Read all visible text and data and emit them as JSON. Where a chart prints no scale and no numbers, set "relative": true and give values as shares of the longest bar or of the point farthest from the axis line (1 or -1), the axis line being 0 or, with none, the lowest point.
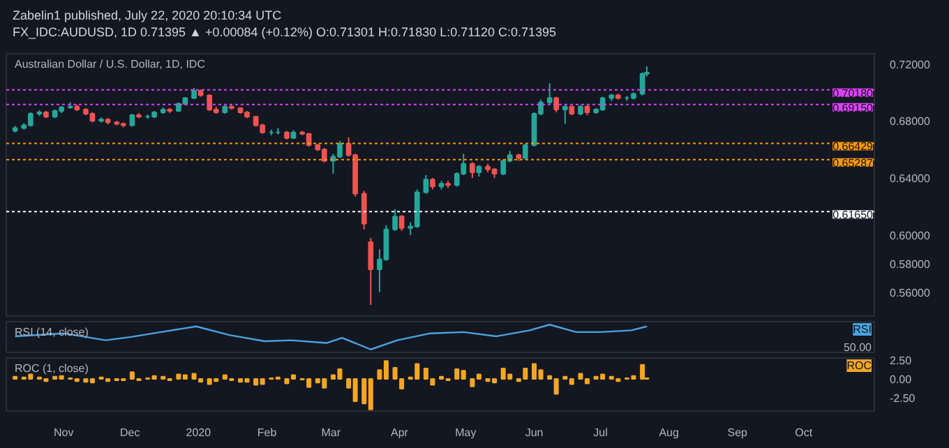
{
  "chart_data": [
    {
      "type": "candlestick",
      "title": "Australian Dollar / U.S. Dollar, 1D, IDC",
      "annotations": [
        "Zabelin1 published, July 22, 2020 20:10:34 UTC",
        "FX_IDC:AUDUSD, 1D 0.71395 ▲ +0.00084 (+0.12%) O:0.71301 H:0.71830 L:0.71120 C:0.71395"
      ],
      "x": [
        "2019-10-10",
        "2019-10-14",
        "2019-10-17",
        "2019-10-21",
        "2019-10-24",
        "2019-10-28",
        "2019-10-31",
        "2019-11-04",
        "2019-11-07",
        "2019-11-11",
        "2019-11-14",
        "2019-11-18",
        "2019-11-21",
        "2019-11-25",
        "2019-11-28",
        "2019-12-02",
        "2019-12-05",
        "2019-12-09",
        "2019-12-12",
        "2019-12-16",
        "2019-12-19",
        "2019-12-23",
        "2019-12-26",
        "2019-12-30",
        "2020-01-02",
        "2020-01-06",
        "2020-01-09",
        "2020-01-13",
        "2020-01-16",
        "2020-01-20",
        "2020-01-23",
        "2020-01-27",
        "2020-01-30",
        "2020-02-03",
        "2020-02-06",
        "2020-02-10",
        "2020-02-13",
        "2020-02-17",
        "2020-02-20",
        "2020-02-24",
        "2020-02-27",
        "2020-03-02",
        "2020-03-05",
        "2020-03-09",
        "2020-03-12",
        "2020-03-16",
        "2020-03-19",
        "2020-03-23",
        "2020-03-26",
        "2020-03-30",
        "2020-04-02",
        "2020-04-06",
        "2020-04-09",
        "2020-04-13",
        "2020-04-16",
        "2020-04-20",
        "2020-04-23",
        "2020-04-27",
        "2020-04-30",
        "2020-05-04",
        "2020-05-07",
        "2020-05-11",
        "2020-05-14",
        "2020-05-18",
        "2020-05-21",
        "2020-05-25",
        "2020-05-28",
        "2020-06-01",
        "2020-06-04",
        "2020-06-08",
        "2020-06-11",
        "2020-06-15",
        "2020-06-18",
        "2020-06-22",
        "2020-06-25",
        "2020-06-29",
        "2020-07-02",
        "2020-07-06",
        "2020-07-09",
        "2020-07-13",
        "2020-07-16",
        "2020-07-20",
        "2020-07-22"
      ],
      "ohlc": [
        [
          0.673,
          0.6765,
          0.672,
          0.675
        ],
        [
          0.675,
          0.6785,
          0.674,
          0.677
        ],
        [
          0.677,
          0.686,
          0.676,
          0.685
        ],
        [
          0.685,
          0.6875,
          0.6835,
          0.686
        ],
        [
          0.686,
          0.687,
          0.682,
          0.683
        ],
        [
          0.683,
          0.688,
          0.682,
          0.687
        ],
        [
          0.687,
          0.6905,
          0.6855,
          0.6895
        ],
        [
          0.6895,
          0.693,
          0.6885,
          0.69
        ],
        [
          0.69,
          0.6915,
          0.687,
          0.688
        ],
        [
          0.688,
          0.689,
          0.684,
          0.685
        ],
        [
          0.685,
          0.686,
          0.679,
          0.68
        ],
        [
          0.68,
          0.6825,
          0.679,
          0.681
        ],
        [
          0.681,
          0.682,
          0.6775,
          0.679
        ],
        [
          0.679,
          0.68,
          0.677,
          0.678
        ],
        [
          0.678,
          0.679,
          0.6755,
          0.677
        ],
        [
          0.677,
          0.685,
          0.676,
          0.684
        ],
        [
          0.684,
          0.6855,
          0.682,
          0.683
        ],
        [
          0.683,
          0.6845,
          0.6815,
          0.683
        ],
        [
          0.683,
          0.687,
          0.682,
          0.686
        ],
        [
          0.686,
          0.6895,
          0.685,
          0.688
        ],
        [
          0.688,
          0.689,
          0.6855,
          0.687
        ],
        [
          0.687,
          0.693,
          0.6865,
          0.692
        ],
        [
          0.692,
          0.6965,
          0.691,
          0.696
        ],
        [
          0.696,
          0.7032,
          0.6955,
          0.701
        ],
        [
          0.701,
          0.702,
          0.697,
          0.698
        ],
        [
          0.698,
          0.6985,
          0.687,
          0.688
        ],
        [
          0.688,
          0.69,
          0.685,
          0.686
        ],
        [
          0.686,
          0.691,
          0.685,
          0.69
        ],
        [
          0.69,
          0.6915,
          0.688,
          0.689
        ],
        [
          0.689,
          0.6895,
          0.685,
          0.686
        ],
        [
          0.686,
          0.687,
          0.682,
          0.683
        ],
        [
          0.683,
          0.6835,
          0.676,
          0.677
        ],
        [
          0.677,
          0.678,
          0.671,
          0.672
        ],
        [
          0.672,
          0.674,
          0.67,
          0.672
        ],
        [
          0.672,
          0.675,
          0.6705,
          0.672
        ],
        [
          0.672,
          0.673,
          0.667,
          0.668
        ],
        [
          0.668,
          0.6735,
          0.6675,
          0.672
        ],
        [
          0.672,
          0.673,
          0.67,
          0.671
        ],
        [
          0.671,
          0.6715,
          0.662,
          0.663
        ],
        [
          0.663,
          0.664,
          0.659,
          0.66
        ],
        [
          0.66,
          0.661,
          0.651,
          0.652
        ],
        [
          0.652,
          0.657,
          0.643,
          0.655
        ],
        [
          0.655,
          0.666,
          0.654,
          0.664
        ],
        [
          0.664,
          0.6685,
          0.655,
          0.656
        ],
        [
          0.656,
          0.657,
          0.627,
          0.629
        ],
        [
          0.629,
          0.631,
          0.604,
          0.608
        ],
        [
          0.595,
          0.598,
          0.551,
          0.576
        ],
        [
          0.576,
          0.59,
          0.56,
          0.583
        ],
        [
          0.583,
          0.607,
          0.582,
          0.604
        ],
        [
          0.604,
          0.618,
          0.603,
          0.613
        ],
        [
          0.613,
          0.614,
          0.603,
          0.605
        ],
        [
          0.605,
          0.609,
          0.6,
          0.606
        ],
        [
          0.606,
          0.632,
          0.605,
          0.63
        ],
        [
          0.63,
          0.642,
          0.629,
          0.639
        ],
        [
          0.639,
          0.64,
          0.632,
          0.634
        ],
        [
          0.634,
          0.638,
          0.632,
          0.636
        ],
        [
          0.636,
          0.638,
          0.633,
          0.635
        ],
        [
          0.635,
          0.644,
          0.634,
          0.643
        ],
        [
          0.643,
          0.657,
          0.642,
          0.65
        ],
        [
          0.65,
          0.651,
          0.64,
          0.644
        ],
        [
          0.644,
          0.649,
          0.641,
          0.648
        ],
        [
          0.648,
          0.65,
          0.644,
          0.646
        ],
        [
          0.646,
          0.647,
          0.64,
          0.643
        ],
        [
          0.643,
          0.653,
          0.642,
          0.652
        ],
        [
          0.652,
          0.659,
          0.651,
          0.656
        ],
        [
          0.656,
          0.657,
          0.652,
          0.654
        ],
        [
          0.654,
          0.664,
          0.653,
          0.663
        ],
        [
          0.663,
          0.686,
          0.662,
          0.685
        ],
        [
          0.685,
          0.695,
          0.684,
          0.693
        ],
        [
          0.693,
          0.7064,
          0.692,
          0.696
        ],
        [
          0.696,
          0.697,
          0.686,
          0.688
        ],
        [
          0.688,
          0.691,
          0.678,
          0.69
        ],
        [
          0.69,
          0.6905,
          0.684,
          0.685
        ],
        [
          0.685,
          0.691,
          0.684,
          0.69
        ],
        [
          0.69,
          0.691,
          0.684,
          0.686
        ],
        [
          0.686,
          0.689,
          0.685,
          0.688
        ],
        [
          0.688,
          0.697,
          0.687,
          0.696
        ],
        [
          0.696,
          0.699,
          0.694,
          0.698
        ],
        [
          0.698,
          0.699,
          0.695,
          0.696
        ],
        [
          0.696,
          0.6975,
          0.694,
          0.696
        ],
        [
          0.696,
          0.7,
          0.695,
          0.699
        ],
        [
          0.699,
          0.714,
          0.698,
          0.713
        ],
        [
          0.71301,
          0.7183,
          0.7112,
          0.71395
        ]
      ],
      "colors": [
        "#26a69a",
        "#26a69a",
        "#26a69a",
        "#26a69a",
        "#ef5350",
        "#26a69a",
        "#26a69a",
        "#26a69a",
        "#ef5350",
        "#ef5350",
        "#ef5350",
        "#26a69a",
        "#ef5350",
        "#ef5350",
        "#ef5350",
        "#26a69a",
        "#ef5350",
        "#26a69a",
        "#26a69a",
        "#26a69a",
        "#ef5350",
        "#26a69a",
        "#26a69a",
        "#26a69a",
        "#ef5350",
        "#ef5350",
        "#ef5350",
        "#26a69a",
        "#ef5350",
        "#ef5350",
        "#ef5350",
        "#ef5350",
        "#ef5350",
        "#26a69a",
        "#26a69a",
        "#ef5350",
        "#26a69a",
        "#ef5350",
        "#ef5350",
        "#ef5350",
        "#ef5350",
        "#26a69a",
        "#26a69a",
        "#ef5350",
        "#ef5350",
        "#ef5350",
        "#ef5350",
        "#26a69a",
        "#26a69a",
        "#26a69a",
        "#ef5350",
        "#26a69a",
        "#26a69a",
        "#26a69a",
        "#ef5350",
        "#26a69a",
        "#ef5350",
        "#26a69a",
        "#26a69a",
        "#ef5350",
        "#26a69a",
        "#ef5350",
        "#ef5350",
        "#26a69a",
        "#26a69a",
        "#ef5350",
        "#26a69a",
        "#26a69a",
        "#26a69a",
        "#26a69a",
        "#ef5350",
        "#26a69a",
        "#ef5350",
        "#26a69a",
        "#ef5350",
        "#26a69a",
        "#26a69a",
        "#26a69a",
        "#ef5350",
        "#26a69a",
        "#26a69a",
        "#26a69a",
        "#26a69a"
      ],
      "xlim": [
        "2019-10-06",
        "2020-11-02"
      ],
      "ylim": [
        0.5432,
        0.7271
      ],
      "yticks": [
        {
          "value": 0.72,
          "label": "0.72000"
        },
        {
          "value": 0.68,
          "label": "0.68000"
        },
        {
          "value": 0.64,
          "label": "0.64000"
        },
        {
          "value": 0.6,
          "label": "0.60000"
        },
        {
          "value": 0.58,
          "label": "0.58000"
        },
        {
          "value": 0.56,
          "label": "0.56000"
        }
      ],
      "ref_lines": [
        {
          "axis": "y",
          "value": 0.7018,
          "label": "0.70180",
          "color": "#e040fb",
          "line_style": "dotted"
        },
        {
          "axis": "y",
          "value": 0.6915,
          "label": "0.69150",
          "color": "#e040fb",
          "line_style": "dotted"
        },
        {
          "axis": "y",
          "value": 0.66429,
          "label": "0.66429",
          "color": "#ff9800",
          "line_style": "dotted"
        },
        {
          "axis": "y",
          "value": 0.65287,
          "label": "0.65287",
          "color": "#ff9800",
          "line_style": "dotted"
        },
        {
          "axis": "y",
          "value": 0.6165,
          "label": "0.61650",
          "color": "#ffffff",
          "line_style": "dotted"
        }
      ],
      "grid": false,
      "tick_labels": "y"
    },
    {
      "type": "line",
      "title": "RSI (14, close)",
      "relative": true,
      "annotations": [
        "RSI",
        "50.00"
      ],
      "x": [
        "2019-10-10",
        "2019-11-01",
        "2019-11-20",
        "2019-12-02",
        "2019-12-15",
        "2019-12-31",
        "2020-01-15",
        "2020-01-31",
        "2020-02-12",
        "2020-02-28",
        "2020-03-06",
        "2020-03-19",
        "2020-03-31",
        "2020-04-15",
        "2020-04-30",
        "2020-05-15",
        "2020-05-30",
        "2020-06-08",
        "2020-06-20",
        "2020-07-01",
        "2020-07-15",
        "2020-07-22"
      ],
      "series": [
        {
          "color": "#4aa3df",
          "values": [
            0.53,
            0.65,
            0.37,
            0.51,
            0.7,
            0.93,
            0.58,
            0.33,
            0.37,
            0.26,
            0.47,
            0,
            0.37,
            0.65,
            0.7,
            0.53,
            0.77,
            1,
            0.7,
            0.7,
            0.77,
            0.93
          ]
        }
      ],
      "xlim": [
        "2019-10-06",
        "2020-11-02"
      ],
      "grid": false,
      "tick_labels": false
    },
    {
      "type": "bar",
      "title": "ROC (1, close)",
      "annotations": [
        "ROC"
      ],
      "x": [
        "2019-10-10",
        "2019-10-14",
        "2019-10-17",
        "2019-10-21",
        "2019-10-24",
        "2019-10-28",
        "2019-10-31",
        "2019-11-04",
        "2019-11-07",
        "2019-11-11",
        "2019-11-14",
        "2019-11-18",
        "2019-11-21",
        "2019-11-25",
        "2019-11-28",
        "2019-12-02",
        "2019-12-05",
        "2019-12-09",
        "2019-12-12",
        "2019-12-16",
        "2019-12-19",
        "2019-12-23",
        "2019-12-26",
        "2019-12-30",
        "2020-01-02",
        "2020-01-06",
        "2020-01-09",
        "2020-01-13",
        "2020-01-16",
        "2020-01-20",
        "2020-01-23",
        "2020-01-27",
        "2020-01-30",
        "2020-02-03",
        "2020-02-06",
        "2020-02-10",
        "2020-02-13",
        "2020-02-17",
        "2020-02-20",
        "2020-02-24",
        "2020-02-27",
        "2020-03-02",
        "2020-03-05",
        "2020-03-09",
        "2020-03-12",
        "2020-03-16",
        "2020-03-19",
        "2020-03-23",
        "2020-03-26",
        "2020-03-30",
        "2020-04-02",
        "2020-04-06",
        "2020-04-09",
        "2020-04-13",
        "2020-04-16",
        "2020-04-20",
        "2020-04-23",
        "2020-04-27",
        "2020-04-30",
        "2020-05-04",
        "2020-05-07",
        "2020-05-11",
        "2020-05-14",
        "2020-05-18",
        "2020-05-21",
        "2020-05-25",
        "2020-05-28",
        "2020-06-01",
        "2020-06-04",
        "2020-06-08",
        "2020-06-11",
        "2020-06-15",
        "2020-06-18",
        "2020-06-22",
        "2020-06-25",
        "2020-06-29",
        "2020-07-02",
        "2020-07-06",
        "2020-07-09",
        "2020-07-13",
        "2020-07-16",
        "2020-07-20",
        "2020-07-22"
      ],
      "series": [
        {
          "color": "#f5a623",
          "values": [
            0.3,
            0.2,
            0.6,
            0.2,
            -0.3,
            0.3,
            0.4,
            0.1,
            -0.3,
            -0.4,
            -0.5,
            0.2,
            -0.3,
            -0.2,
            -0.2,
            0.9,
            -0.2,
            0.1,
            0.4,
            0.3,
            -0.2,
            0.6,
            0.5,
            0.7,
            -0.4,
            -0.7,
            -0.3,
            0.5,
            -0.2,
            -0.4,
            -0.4,
            -0.8,
            -0.7,
            0.1,
            0.2,
            -0.6,
            0.5,
            -0.1,
            -1.1,
            -0.5,
            -1.2,
            0.5,
            1.3,
            -1.2,
            -3.0,
            -3.3,
            -4.1,
            1.2,
            2.4,
            1.5,
            -1.3,
            0.2,
            2.0,
            1.4,
            -0.8,
            0.3,
            -0.2,
            1.3,
            1.1,
            -1.0,
            0.6,
            -0.3,
            -0.5,
            1.4,
            0.6,
            -0.3,
            1.4,
            2.0,
            1.2,
            0.4,
            -2.0,
            0.3,
            -0.7,
            0.7,
            -0.6,
            0.3,
            0.6,
            0.3,
            -0.3,
            0.1,
            0.4,
            1.9,
            0.1
          ]
        }
      ],
      "xlim": [
        "2019-10-06",
        "2020-11-02"
      ],
      "ylim": [
        -4.3,
        2.8
      ],
      "yticks": [
        {
          "value": 2.5,
          "label": "2.50"
        },
        {
          "value": 0,
          "label": "0.00"
        },
        {
          "value": -2.5,
          "label": "-2.50"
        }
      ],
      "xticks": [
        {
          "value": "2019-11-01",
          "label": "Nov"
        },
        {
          "value": "2019-12-01",
          "label": "Dec"
        },
        {
          "value": "2020-01-01",
          "label": "2020"
        },
        {
          "value": "2020-02-01",
          "label": "Feb"
        },
        {
          "value": "2020-03-01",
          "label": "Mar"
        },
        {
          "value": "2020-04-01",
          "label": "Apr"
        },
        {
          "value": "2020-05-01",
          "label": "May"
        },
        {
          "value": "2020-06-01",
          "label": "Jun"
        },
        {
          "value": "2020-07-01",
          "label": "Jul"
        },
        {
          "value": "2020-08-01",
          "label": "Aug"
        },
        {
          "value": "2020-09-01",
          "label": "Sep"
        },
        {
          "value": "2020-10-01",
          "label": "Oct"
        }
      ],
      "grid": false
    }
  ]
}
